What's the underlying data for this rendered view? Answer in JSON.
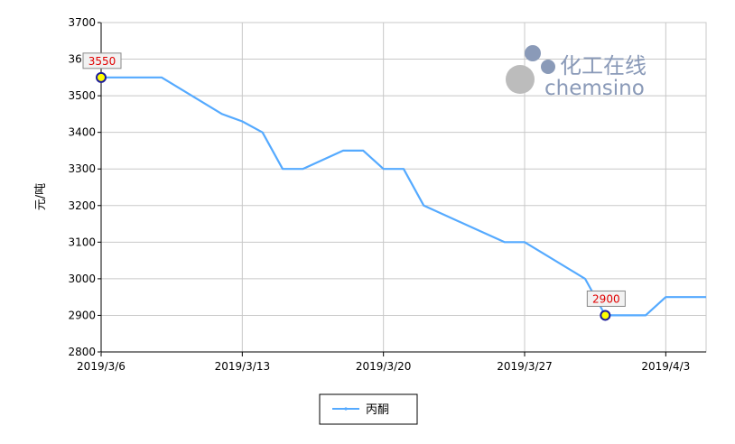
{
  "chart_data": {
    "type": "line",
    "ylabel": "元/吨",
    "xlabel": "",
    "title": "",
    "ylim": [
      2800,
      3700
    ],
    "y_ticks": [
      2800,
      2900,
      3000,
      3100,
      3200,
      3300,
      3400,
      3500,
      3600,
      3700
    ],
    "x_start": "2019/3/6",
    "x_end": "2019/4/5",
    "x_tick_labels": [
      "2019/3/6",
      "2019/3/13",
      "2019/3/20",
      "2019/3/27",
      "2019/4/3"
    ],
    "grid": true,
    "legend_position": "bottom-center",
    "series": [
      {
        "name": "丙酮",
        "color": "#55aaff",
        "x": [
          "2019/3/6",
          "2019/3/9",
          "2019/3/12",
          "2019/3/13",
          "2019/3/14",
          "2019/3/15",
          "2019/3/16",
          "2019/3/18",
          "2019/3/19",
          "2019/3/20",
          "2019/3/21",
          "2019/3/22",
          "2019/3/26",
          "2019/3/27",
          "2019/3/30",
          "2019/3/31",
          "2019/4/1",
          "2019/4/2",
          "2019/4/3",
          "2019/4/4",
          "2019/4/5"
        ],
        "values": [
          3550,
          3550,
          3450,
          3430,
          3400,
          3300,
          3300,
          3350,
          3350,
          3300,
          3300,
          3200,
          3100,
          3100,
          3000,
          2900,
          2900,
          2900,
          2950,
          2950,
          2950
        ]
      }
    ],
    "annotations": [
      {
        "x": "2019/3/6",
        "value": 3550,
        "label": "3550"
      },
      {
        "x": "2019/3/31",
        "value": 2900,
        "label": "2900"
      }
    ]
  },
  "watermark": {
    "cn_text": "化工在线",
    "en_text": "chemsino"
  }
}
